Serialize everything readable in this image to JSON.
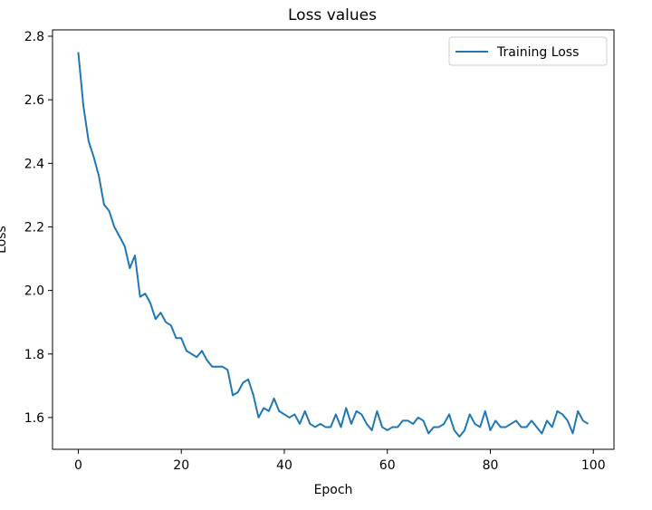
{
  "chart_data": {
    "type": "line",
    "title": "Loss values",
    "xlabel": "Epoch",
    "ylabel": "Loss",
    "xlim": [
      -5,
      104
    ],
    "ylim": [
      1.5,
      2.82
    ],
    "xticks": [
      0,
      20,
      40,
      60,
      80,
      100
    ],
    "yticks": [
      1.6,
      1.8,
      2.0,
      2.2,
      2.4,
      2.6,
      2.8
    ],
    "grid": false,
    "legend_placement": "top-right",
    "series": [
      {
        "name": "Training Loss",
        "color": "#1f77b4",
        "x": [
          0,
          1,
          2,
          3,
          4,
          5,
          6,
          7,
          8,
          9,
          10,
          11,
          12,
          13,
          14,
          15,
          16,
          17,
          18,
          19,
          20,
          21,
          22,
          23,
          24,
          25,
          26,
          27,
          28,
          29,
          30,
          31,
          32,
          33,
          34,
          35,
          36,
          37,
          38,
          39,
          40,
          41,
          42,
          43,
          44,
          45,
          46,
          47,
          48,
          49,
          50,
          51,
          52,
          53,
          54,
          55,
          56,
          57,
          58,
          59,
          60,
          61,
          62,
          63,
          64,
          65,
          66,
          67,
          68,
          69,
          70,
          71,
          72,
          73,
          74,
          75,
          76,
          77,
          78,
          79,
          80,
          81,
          82,
          83,
          84,
          85,
          86,
          87,
          88,
          89,
          90,
          91,
          92,
          93,
          94,
          95,
          96,
          97,
          98,
          99
        ],
        "values": [
          2.75,
          2.58,
          2.47,
          2.42,
          2.36,
          2.27,
          2.25,
          2.2,
          2.17,
          2.14,
          2.07,
          2.11,
          1.98,
          1.99,
          1.96,
          1.91,
          1.93,
          1.9,
          1.89,
          1.85,
          1.85,
          1.81,
          1.8,
          1.79,
          1.81,
          1.78,
          1.76,
          1.76,
          1.76,
          1.75,
          1.67,
          1.68,
          1.71,
          1.72,
          1.67,
          1.6,
          1.63,
          1.62,
          1.66,
          1.62,
          1.61,
          1.6,
          1.61,
          1.58,
          1.62,
          1.58,
          1.57,
          1.58,
          1.57,
          1.57,
          1.61,
          1.57,
          1.63,
          1.58,
          1.62,
          1.61,
          1.58,
          1.56,
          1.62,
          1.57,
          1.56,
          1.57,
          1.57,
          1.59,
          1.59,
          1.58,
          1.6,
          1.59,
          1.55,
          1.57,
          1.57,
          1.58,
          1.61,
          1.56,
          1.54,
          1.56,
          1.61,
          1.58,
          1.57,
          1.62,
          1.56,
          1.59,
          1.57,
          1.57,
          1.58,
          1.59,
          1.57,
          1.57,
          1.59,
          1.57,
          1.55,
          1.59,
          1.57,
          1.62,
          1.61,
          1.59,
          1.55,
          1.62,
          1.59,
          1.58
        ]
      }
    ]
  }
}
